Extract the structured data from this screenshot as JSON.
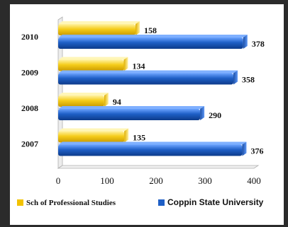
{
  "chart_data": {
    "type": "bar",
    "orientation": "horizontal",
    "title": "",
    "categories": [
      "2010",
      "2009",
      "2008",
      "2007"
    ],
    "series": [
      {
        "name": "Sch of Professional Studies",
        "values": [
          158,
          134,
          94,
          135
        ],
        "color": "#f2c200"
      },
      {
        "name": "Coppin State University",
        "values": [
          378,
          358,
          290,
          376
        ],
        "color": "#1f5fc6"
      }
    ],
    "x_ticks": [
      "0",
      "100",
      "200",
      "300",
      "400"
    ],
    "xlim": [
      0,
      400
    ],
    "grid": false,
    "legend_position": "bottom"
  }
}
